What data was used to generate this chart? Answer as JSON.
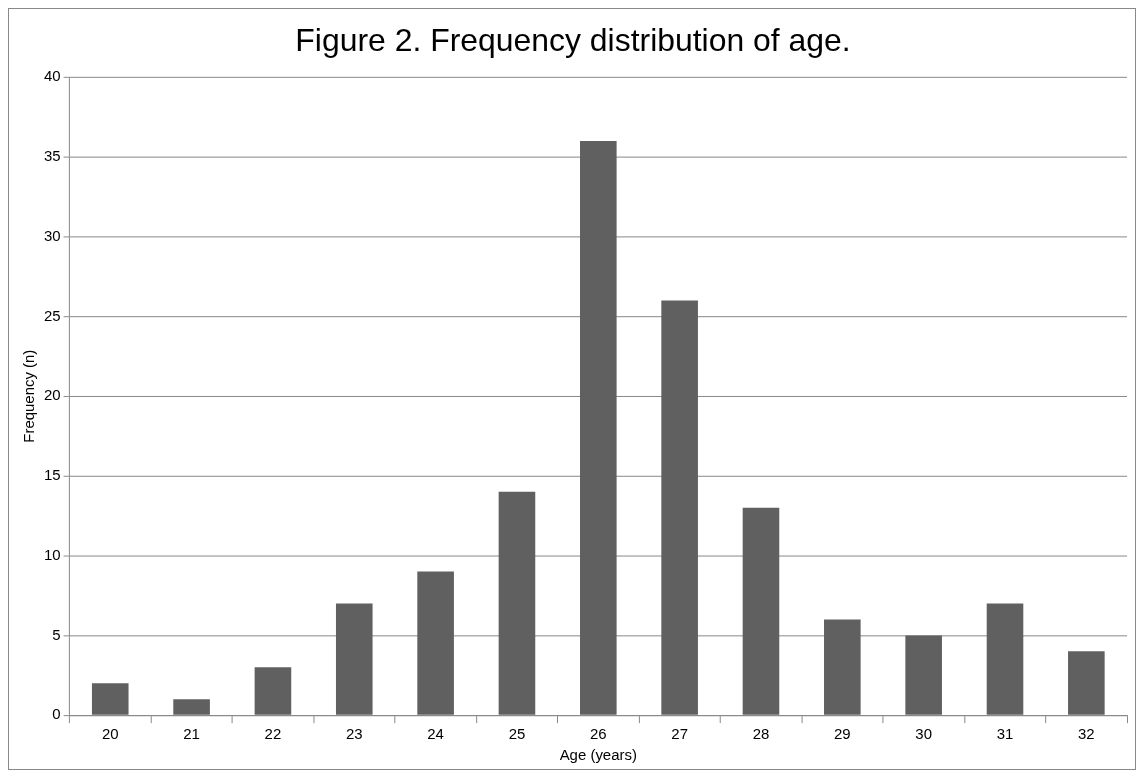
{
  "chart_data": {
    "type": "bar",
    "title": "Figure 2. Frequency distribution of age.",
    "xlabel": "Age (years)",
    "ylabel": "Frequency (n)",
    "categories": [
      "20",
      "21",
      "22",
      "23",
      "24",
      "25",
      "26",
      "27",
      "28",
      "29",
      "30",
      "31",
      "32"
    ],
    "values": [
      2,
      1,
      3,
      7,
      9,
      14,
      36,
      26,
      13,
      6,
      5,
      7,
      4
    ],
    "color": "#606060",
    "ylim": [
      0,
      40
    ],
    "yticks": [
      0,
      5,
      10,
      15,
      20,
      25,
      30,
      35,
      40
    ],
    "grid": "y",
    "legend": false
  }
}
